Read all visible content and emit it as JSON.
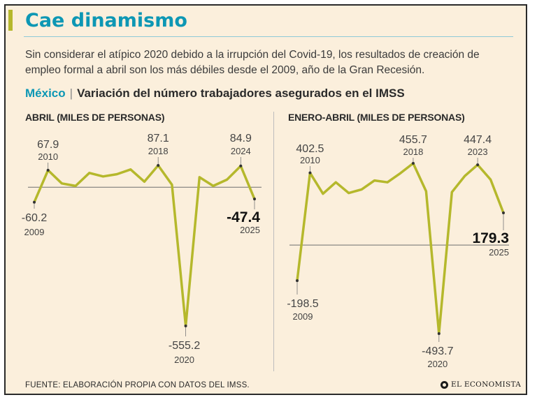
{
  "title": "Cae dinamismo",
  "subtitle": "Sin considerar el atípico 2020 debido a la irrupción del Covid-19, los resultados de creación de empleo formal a abril son los más débiles desde el 2009, año de la Gran Recesión.",
  "section": {
    "country": "México",
    "separator": "|",
    "title": "Variación del número trabajadores asegurados en el IMSS"
  },
  "colors": {
    "line": "#b5b82c",
    "accent": "#0d97b4",
    "background": "#fbefdc"
  },
  "chart_data": [
    {
      "type": "line",
      "title": "ABRIL (MILES DE PERSONAS)",
      "x": [
        2009,
        2010,
        2011,
        2012,
        2013,
        2014,
        2015,
        2016,
        2017,
        2018,
        2019,
        2020,
        2021,
        2022,
        2023,
        2024,
        2025
      ],
      "values": [
        -60.2,
        67.9,
        15,
        5,
        57,
        43,
        52,
        71,
        22,
        87.1,
        10,
        -555.2,
        40,
        5,
        30,
        84.9,
        -47.4
      ],
      "ylim": [
        -555.2,
        87.1
      ],
      "grid": false,
      "zero_line": true,
      "annotations": [
        {
          "x": 2009,
          "value": "-60.2",
          "year": "2009",
          "bold": false
        },
        {
          "x": 2010,
          "value": "67.9",
          "year": "2010",
          "bold": false
        },
        {
          "x": 2018,
          "value": "87.1",
          "year": "2018",
          "bold": false
        },
        {
          "x": 2020,
          "value": "-555.2",
          "year": "2020",
          "bold": false
        },
        {
          "x": 2024,
          "value": "84.9",
          "year": "2024",
          "bold": false
        },
        {
          "x": 2025,
          "value": "-47.4",
          "year": "2025",
          "bold": true
        }
      ]
    },
    {
      "type": "line",
      "title": "ENERO-ABRIL (MILES DE PERSONAS)",
      "x": [
        2009,
        2010,
        2011,
        2012,
        2013,
        2014,
        2015,
        2016,
        2017,
        2018,
        2019,
        2020,
        2021,
        2022,
        2023,
        2024,
        2025
      ],
      "values": [
        -198.5,
        402.5,
        286,
        350,
        290,
        310,
        360,
        350,
        400,
        455.7,
        300,
        -493.7,
        295,
        385,
        447.4,
        365,
        179.3
      ],
      "ylim": [
        -493.7,
        455.7
      ],
      "grid": false,
      "zero_line": true,
      "annotations": [
        {
          "x": 2009,
          "value": "-198.5",
          "year": "2009",
          "bold": false
        },
        {
          "x": 2010,
          "value": "402.5",
          "year": "2010",
          "bold": false
        },
        {
          "x": 2018,
          "value": "455.7",
          "year": "2018",
          "bold": false
        },
        {
          "x": 2020,
          "value": "-493.7",
          "year": "2020",
          "bold": false
        },
        {
          "x": 2023,
          "value": "447.4",
          "year": "2023",
          "bold": false
        },
        {
          "x": 2025,
          "value": "179.3",
          "year": "2025",
          "bold": true
        }
      ]
    }
  ],
  "source": "FUENTE: ELABORACIÓN PROPIA CON DATOS DEL IMSS.",
  "logo": {
    "icon": "circle-logo-icon",
    "text": "EL ECONOMISTA"
  }
}
